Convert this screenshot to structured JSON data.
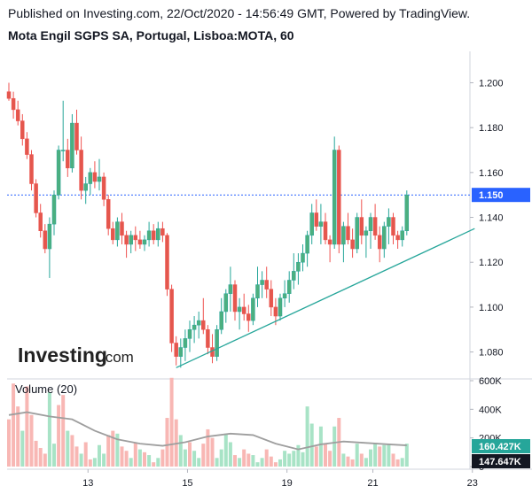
{
  "header": {
    "published": "Published on Investing.com, 22/Oct/2020 - 14:56:49 GMT, Powered by TradingView.",
    "symbol": "Mota Engil SGPS SA, Portugal, Lisboa:MOTA, 60"
  },
  "logo": {
    "main": "Investing",
    "suffix": ".com"
  },
  "colors": {
    "up": "#26a69a",
    "up_fill": "#4caf7f",
    "down": "#ef5350",
    "down_fill": "#e4574d",
    "vol_up": "#a8e3c6",
    "vol_down": "#f8b7b4",
    "vol_ma": "#9e9e9e",
    "trendline": "#26a69a",
    "price_line": "#2962ff",
    "price_tag": "#2962ff",
    "tag_dark": "#131722",
    "tag_green": "#26a69a"
  },
  "chart_data": {
    "type": "candlestick",
    "price_axis": {
      "ticks": [
        1.08,
        1.1,
        1.12,
        1.14,
        1.16,
        1.18,
        1.2
      ],
      "labels": [
        "1.080",
        "1.100",
        "1.120",
        "1.140",
        "1.160",
        "1.180",
        "1.200"
      ],
      "range": [
        1.068,
        1.214
      ]
    },
    "x_axis": {
      "tick_labels": [
        "13",
        "15",
        "19",
        "21",
        "23"
      ],
      "tick_bars": [
        17.5,
        39.5,
        61.5,
        80.5,
        102.5
      ],
      "bar_count": 103
    },
    "last_price": {
      "value": 1.15,
      "label": "1.150"
    },
    "volume_title": "Volume (20)",
    "volume_axis": {
      "ticks": [
        0,
        200000,
        400000,
        600000
      ],
      "labels": [
        "0",
        "200K",
        "400K",
        "600K"
      ]
    },
    "volume_tags": [
      {
        "value": 160427,
        "label": "160.427K"
      },
      {
        "value": 147647,
        "label": "147.647K"
      }
    ],
    "candles": [
      [
        1.196,
        1.2,
        1.192,
        1.193
      ],
      [
        1.193,
        1.196,
        1.184,
        1.188
      ],
      [
        1.188,
        1.192,
        1.181,
        1.183
      ],
      [
        1.183,
        1.186,
        1.172,
        1.175
      ],
      [
        1.175,
        1.178,
        1.166,
        1.168
      ],
      [
        1.168,
        1.17,
        1.152,
        1.155
      ],
      [
        1.155,
        1.157,
        1.14,
        1.142
      ],
      [
        1.142,
        1.146,
        1.131,
        1.134
      ],
      [
        1.134,
        1.137,
        1.124,
        1.126
      ],
      [
        1.126,
        1.14,
        1.113,
        1.137
      ],
      [
        1.137,
        1.152,
        1.132,
        1.15
      ],
      [
        1.15,
        1.172,
        1.148,
        1.17
      ],
      [
        1.17,
        1.192,
        1.165,
        1.17
      ],
      [
        1.17,
        1.175,
        1.158,
        1.162
      ],
      [
        1.162,
        1.186,
        1.16,
        1.182
      ],
      [
        1.182,
        1.188,
        1.168,
        1.17
      ],
      [
        1.17,
        1.176,
        1.148,
        1.152
      ],
      [
        1.152,
        1.158,
        1.146,
        1.155
      ],
      [
        1.155,
        1.162,
        1.15,
        1.16
      ],
      [
        1.16,
        1.165,
        1.153,
        1.156
      ],
      [
        1.156,
        1.166,
        1.152,
        1.158
      ],
      [
        1.158,
        1.16,
        1.145,
        1.148
      ],
      [
        1.148,
        1.15,
        1.132,
        1.135
      ],
      [
        1.135,
        1.138,
        1.128,
        1.13
      ],
      [
        1.13,
        1.14,
        1.127,
        1.138
      ],
      [
        1.138,
        1.142,
        1.128,
        1.132
      ],
      [
        1.132,
        1.134,
        1.122,
        1.128
      ],
      [
        1.128,
        1.134,
        1.124,
        1.132
      ],
      [
        1.132,
        1.136,
        1.125,
        1.13
      ],
      [
        1.13,
        1.134,
        1.126,
        1.128
      ],
      [
        1.128,
        1.132,
        1.125,
        1.13
      ],
      [
        1.13,
        1.138,
        1.127,
        1.134
      ],
      [
        1.134,
        1.137,
        1.128,
        1.13
      ],
      [
        1.13,
        1.138,
        1.127,
        1.135
      ],
      [
        1.135,
        1.138,
        1.129,
        1.132
      ],
      [
        1.132,
        1.133,
        1.105,
        1.108
      ],
      [
        1.108,
        1.11,
        1.08,
        1.084
      ],
      [
        1.084,
        1.087,
        1.074,
        1.078
      ],
      [
        1.078,
        1.086,
        1.073,
        1.082
      ],
      [
        1.082,
        1.09,
        1.076,
        1.086
      ],
      [
        1.086,
        1.094,
        1.08,
        1.09
      ],
      [
        1.09,
        1.096,
        1.084,
        1.092
      ],
      [
        1.092,
        1.098,
        1.086,
        1.094
      ],
      [
        1.094,
        1.104,
        1.088,
        1.09
      ],
      [
        1.09,
        1.092,
        1.079,
        1.082
      ],
      [
        1.082,
        1.088,
        1.075,
        1.078
      ],
      [
        1.078,
        1.092,
        1.076,
        1.09
      ],
      [
        1.09,
        1.104,
        1.088,
        1.098
      ],
      [
        1.098,
        1.108,
        1.093,
        1.106
      ],
      [
        1.106,
        1.118,
        1.098,
        1.11
      ],
      [
        1.11,
        1.112,
        1.094,
        1.098
      ],
      [
        1.098,
        1.104,
        1.09,
        1.1
      ],
      [
        1.1,
        1.106,
        1.094,
        1.097
      ],
      [
        1.097,
        1.101,
        1.089,
        1.094
      ],
      [
        1.094,
        1.106,
        1.092,
        1.104
      ],
      [
        1.104,
        1.118,
        1.1,
        1.11
      ],
      [
        1.11,
        1.116,
        1.104,
        1.112
      ],
      [
        1.112,
        1.118,
        1.104,
        1.108
      ],
      [
        1.108,
        1.112,
        1.096,
        1.1
      ],
      [
        1.1,
        1.104,
        1.092,
        1.096
      ],
      [
        1.096,
        1.106,
        1.094,
        1.104
      ],
      [
        1.104,
        1.112,
        1.1,
        1.106
      ],
      [
        1.106,
        1.116,
        1.102,
        1.112
      ],
      [
        1.112,
        1.124,
        1.108,
        1.116
      ],
      [
        1.116,
        1.124,
        1.11,
        1.12
      ],
      [
        1.12,
        1.128,
        1.116,
        1.124
      ],
      [
        1.124,
        1.134,
        1.118,
        1.132
      ],
      [
        1.132,
        1.146,
        1.128,
        1.142
      ],
      [
        1.142,
        1.148,
        1.134,
        1.136
      ],
      [
        1.136,
        1.146,
        1.128,
        1.138
      ],
      [
        1.138,
        1.142,
        1.128,
        1.13
      ],
      [
        1.13,
        1.132,
        1.12,
        1.128
      ],
      [
        1.128,
        1.176,
        1.126,
        1.17
      ],
      [
        1.17,
        1.172,
        1.124,
        1.128
      ],
      [
        1.128,
        1.138,
        1.12,
        1.136
      ],
      [
        1.136,
        1.142,
        1.128,
        1.13
      ],
      [
        1.13,
        1.135,
        1.122,
        1.126
      ],
      [
        1.126,
        1.142,
        1.124,
        1.14
      ],
      [
        1.14,
        1.148,
        1.128,
        1.132
      ],
      [
        1.132,
        1.136,
        1.122,
        1.134
      ],
      [
        1.134,
        1.142,
        1.126,
        1.14
      ],
      [
        1.14,
        1.146,
        1.13,
        1.132
      ],
      [
        1.132,
        1.136,
        1.12,
        1.126
      ],
      [
        1.126,
        1.138,
        1.122,
        1.136
      ],
      [
        1.136,
        1.144,
        1.128,
        1.14
      ],
      [
        1.14,
        1.142,
        1.128,
        1.132
      ],
      [
        1.132,
        1.134,
        1.126,
        1.13
      ],
      [
        1.13,
        1.136,
        1.127,
        1.134
      ],
      [
        1.134,
        1.152,
        1.132,
        1.15
      ]
    ],
    "volumes": [
      [
        330000,
        "d"
      ],
      [
        580000,
        "d"
      ],
      [
        420000,
        "d"
      ],
      [
        250000,
        "u"
      ],
      [
        560000,
        "d"
      ],
      [
        360000,
        "d"
      ],
      [
        180000,
        "d"
      ],
      [
        130000,
        "d"
      ],
      [
        90000,
        "d"
      ],
      [
        520000,
        "u"
      ],
      [
        160000,
        "u"
      ],
      [
        430000,
        "d"
      ],
      [
        500000,
        "d"
      ],
      [
        250000,
        "u"
      ],
      [
        220000,
        "d"
      ],
      [
        140000,
        "d"
      ],
      [
        90000,
        "u"
      ],
      [
        170000,
        "d"
      ],
      [
        50000,
        "d"
      ],
      [
        60000,
        "u"
      ],
      [
        150000,
        "u"
      ],
      [
        90000,
        "u"
      ],
      [
        220000,
        "d"
      ],
      [
        250000,
        "d"
      ],
      [
        230000,
        "u"
      ],
      [
        140000,
        "d"
      ],
      [
        110000,
        "d"
      ],
      [
        60000,
        "u"
      ],
      [
        170000,
        "d"
      ],
      [
        120000,
        "u"
      ],
      [
        100000,
        "d"
      ],
      [
        80000,
        "u"
      ],
      [
        30000,
        "d"
      ],
      [
        60000,
        "u"
      ],
      [
        120000,
        "d"
      ],
      [
        340000,
        "d"
      ],
      [
        620000,
        "d"
      ],
      [
        330000,
        "d"
      ],
      [
        220000,
        "u"
      ],
      [
        120000,
        "u"
      ],
      [
        170000,
        "d"
      ],
      [
        110000,
        "u"
      ],
      [
        60000,
        "u"
      ],
      [
        160000,
        "d"
      ],
      [
        260000,
        "d"
      ],
      [
        200000,
        "d"
      ],
      [
        60000,
        "u"
      ],
      [
        120000,
        "u"
      ],
      [
        230000,
        "u"
      ],
      [
        170000,
        "u"
      ],
      [
        80000,
        "d"
      ],
      [
        60000,
        "u"
      ],
      [
        120000,
        "d"
      ],
      [
        90000,
        "d"
      ],
      [
        80000,
        "u"
      ],
      [
        30000,
        "u"
      ],
      [
        60000,
        "u"
      ],
      [
        120000,
        "d"
      ],
      [
        70000,
        "d"
      ],
      [
        30000,
        "d"
      ],
      [
        50000,
        "u"
      ],
      [
        110000,
        "u"
      ],
      [
        90000,
        "u"
      ],
      [
        110000,
        "u"
      ],
      [
        150000,
        "u"
      ],
      [
        100000,
        "u"
      ],
      [
        420000,
        "u"
      ],
      [
        300000,
        "u"
      ],
      [
        140000,
        "d"
      ],
      [
        280000,
        "u"
      ],
      [
        160000,
        "d"
      ],
      [
        110000,
        "d"
      ],
      [
        280000,
        "u"
      ],
      [
        340000,
        "d"
      ],
      [
        90000,
        "u"
      ],
      [
        70000,
        "d"
      ],
      [
        50000,
        "d"
      ],
      [
        160000,
        "u"
      ],
      [
        90000,
        "d"
      ],
      [
        60000,
        "u"
      ],
      [
        120000,
        "u"
      ],
      [
        160000,
        "u"
      ],
      [
        140000,
        "d"
      ],
      [
        150000,
        "u"
      ],
      [
        160000,
        "u"
      ],
      [
        90000,
        "d"
      ],
      [
        50000,
        "d"
      ],
      [
        60000,
        "u"
      ],
      [
        160000,
        "u"
      ]
    ],
    "volume_ma": [
      [
        0,
        360000
      ],
      [
        4,
        380000
      ],
      [
        9,
        350000
      ],
      [
        14,
        330000
      ],
      [
        19,
        250000
      ],
      [
        24,
        190000
      ],
      [
        29,
        160000
      ],
      [
        34,
        145000
      ],
      [
        39,
        170000
      ],
      [
        44,
        210000
      ],
      [
        49,
        230000
      ],
      [
        54,
        220000
      ],
      [
        59,
        160000
      ],
      [
        64,
        120000
      ],
      [
        69,
        155000
      ],
      [
        74,
        175000
      ],
      [
        79,
        165000
      ],
      [
        84,
        155000
      ],
      [
        88,
        148000
      ]
    ],
    "trendline": {
      "from": [
        37,
        1.073
      ],
      "to": [
        103,
        1.135
      ]
    }
  }
}
